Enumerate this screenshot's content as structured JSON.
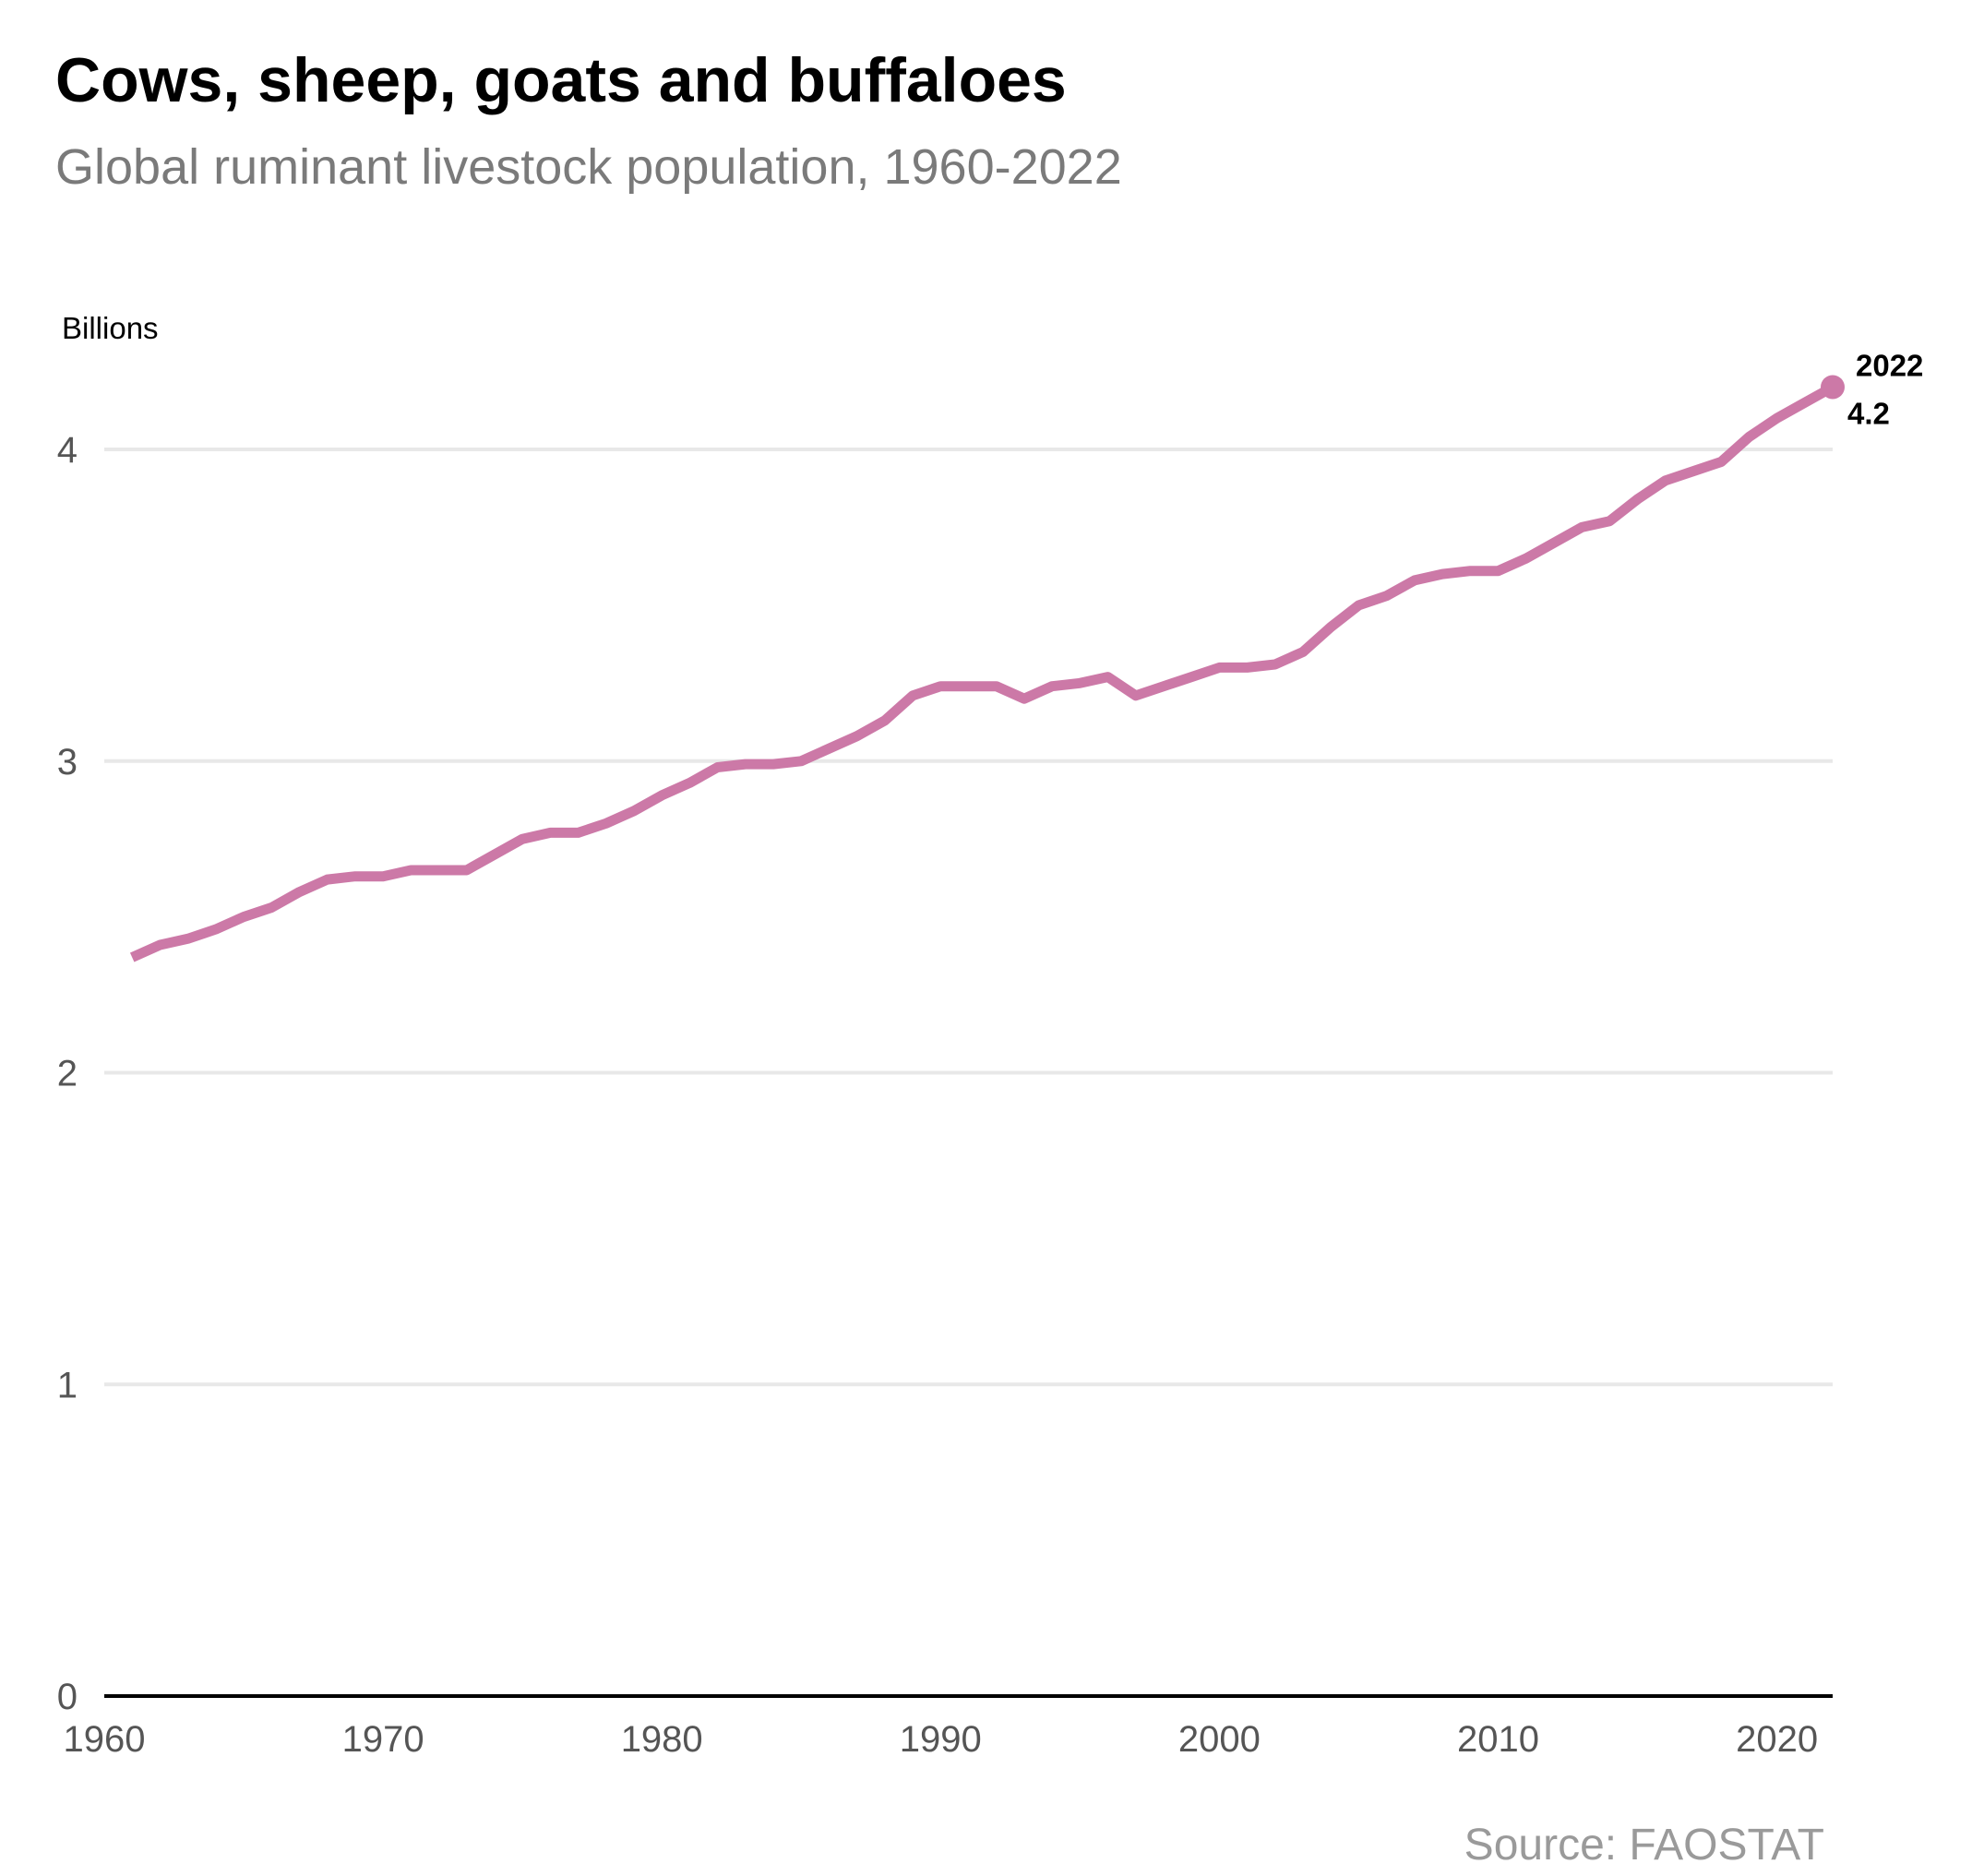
{
  "title": "Cows, sheep, goats and buffaloes",
  "subtitle": "Global ruminant livestock population, 1960-2022",
  "source": "Source: FAOSTAT",
  "colors": {
    "line": "#CC79A7",
    "grid": "#e8e8e8",
    "axis": "#000000"
  },
  "chart_data": {
    "type": "line",
    "ylabel": "Billions",
    "xlim": [
      1960,
      2022
    ],
    "ylim": [
      0,
      4
    ],
    "x_ticks": [
      1960,
      1970,
      1980,
      1990,
      2000,
      2010,
      2020
    ],
    "y_ticks": [
      0,
      1,
      2,
      3,
      4
    ],
    "grid": true,
    "series": [
      {
        "x": [
          1961,
          1962,
          1963,
          1964,
          1965,
          1966,
          1967,
          1968,
          1969,
          1970,
          1971,
          1972,
          1973,
          1974,
          1975,
          1976,
          1977,
          1978,
          1979,
          1980,
          1981,
          1982,
          1983,
          1984,
          1985,
          1986,
          1987,
          1988,
          1989,
          1990,
          1991,
          1992,
          1993,
          1994,
          1995,
          1996,
          1997,
          1998,
          1999,
          2000,
          2001,
          2002,
          2003,
          2004,
          2005,
          2006,
          2007,
          2008,
          2009,
          2010,
          2011,
          2012,
          2013,
          2014,
          2015,
          2016,
          2017,
          2018,
          2019,
          2020,
          2021,
          2022
        ],
        "values": [
          2.37,
          2.41,
          2.43,
          2.46,
          2.5,
          2.53,
          2.58,
          2.62,
          2.63,
          2.63,
          2.65,
          2.65,
          2.65,
          2.7,
          2.75,
          2.77,
          2.77,
          2.8,
          2.84,
          2.89,
          2.93,
          2.98,
          2.99,
          2.99,
          3.0,
          3.04,
          3.08,
          3.13,
          3.21,
          3.24,
          3.24,
          3.24,
          3.2,
          3.24,
          3.25,
          3.27,
          3.21,
          3.24,
          3.27,
          3.3,
          3.3,
          3.31,
          3.35,
          3.43,
          3.5,
          3.53,
          3.58,
          3.6,
          3.61,
          3.61,
          3.65,
          3.7,
          3.75,
          3.77,
          3.84,
          3.9,
          3.93,
          3.96,
          4.04,
          4.1,
          4.15,
          4.2
        ]
      }
    ],
    "annotations": [
      {
        "label": "2022",
        "value_label": "4.2"
      }
    ]
  }
}
